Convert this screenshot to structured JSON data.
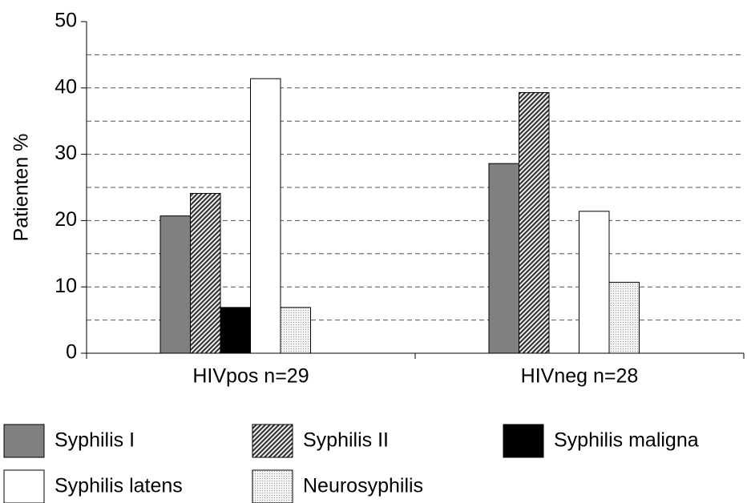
{
  "chart_data": {
    "type": "bar",
    "ylabel": "Patienten %",
    "categories": [
      "HIVpos n=29",
      "HIVneg n=28"
    ],
    "series": [
      {
        "name": "Syphilis I",
        "color": "#808080",
        "values": [
          20.7,
          28.6
        ]
      },
      {
        "name": "Syphilis II",
        "color": "#a0a0a0",
        "pattern": "hatch",
        "values": [
          24.1,
          39.3
        ]
      },
      {
        "name": "Syphilis maligna",
        "color": "#000000",
        "values": [
          6.9,
          0
        ]
      },
      {
        "name": "Syphilis latens",
        "color": "#ffffff",
        "values": [
          41.4,
          21.4
        ]
      },
      {
        "name": "Neurosyphilis",
        "color": "#e0e0e0",
        "pattern": "dots",
        "values": [
          6.9,
          10.7
        ]
      }
    ],
    "ylim": [
      0,
      50
    ],
    "yticks": [
      0,
      10,
      20,
      30,
      40,
      50
    ],
    "minor_yticks": [
      5,
      15,
      25,
      35,
      45
    ],
    "grid": true,
    "legend": "bottom"
  }
}
